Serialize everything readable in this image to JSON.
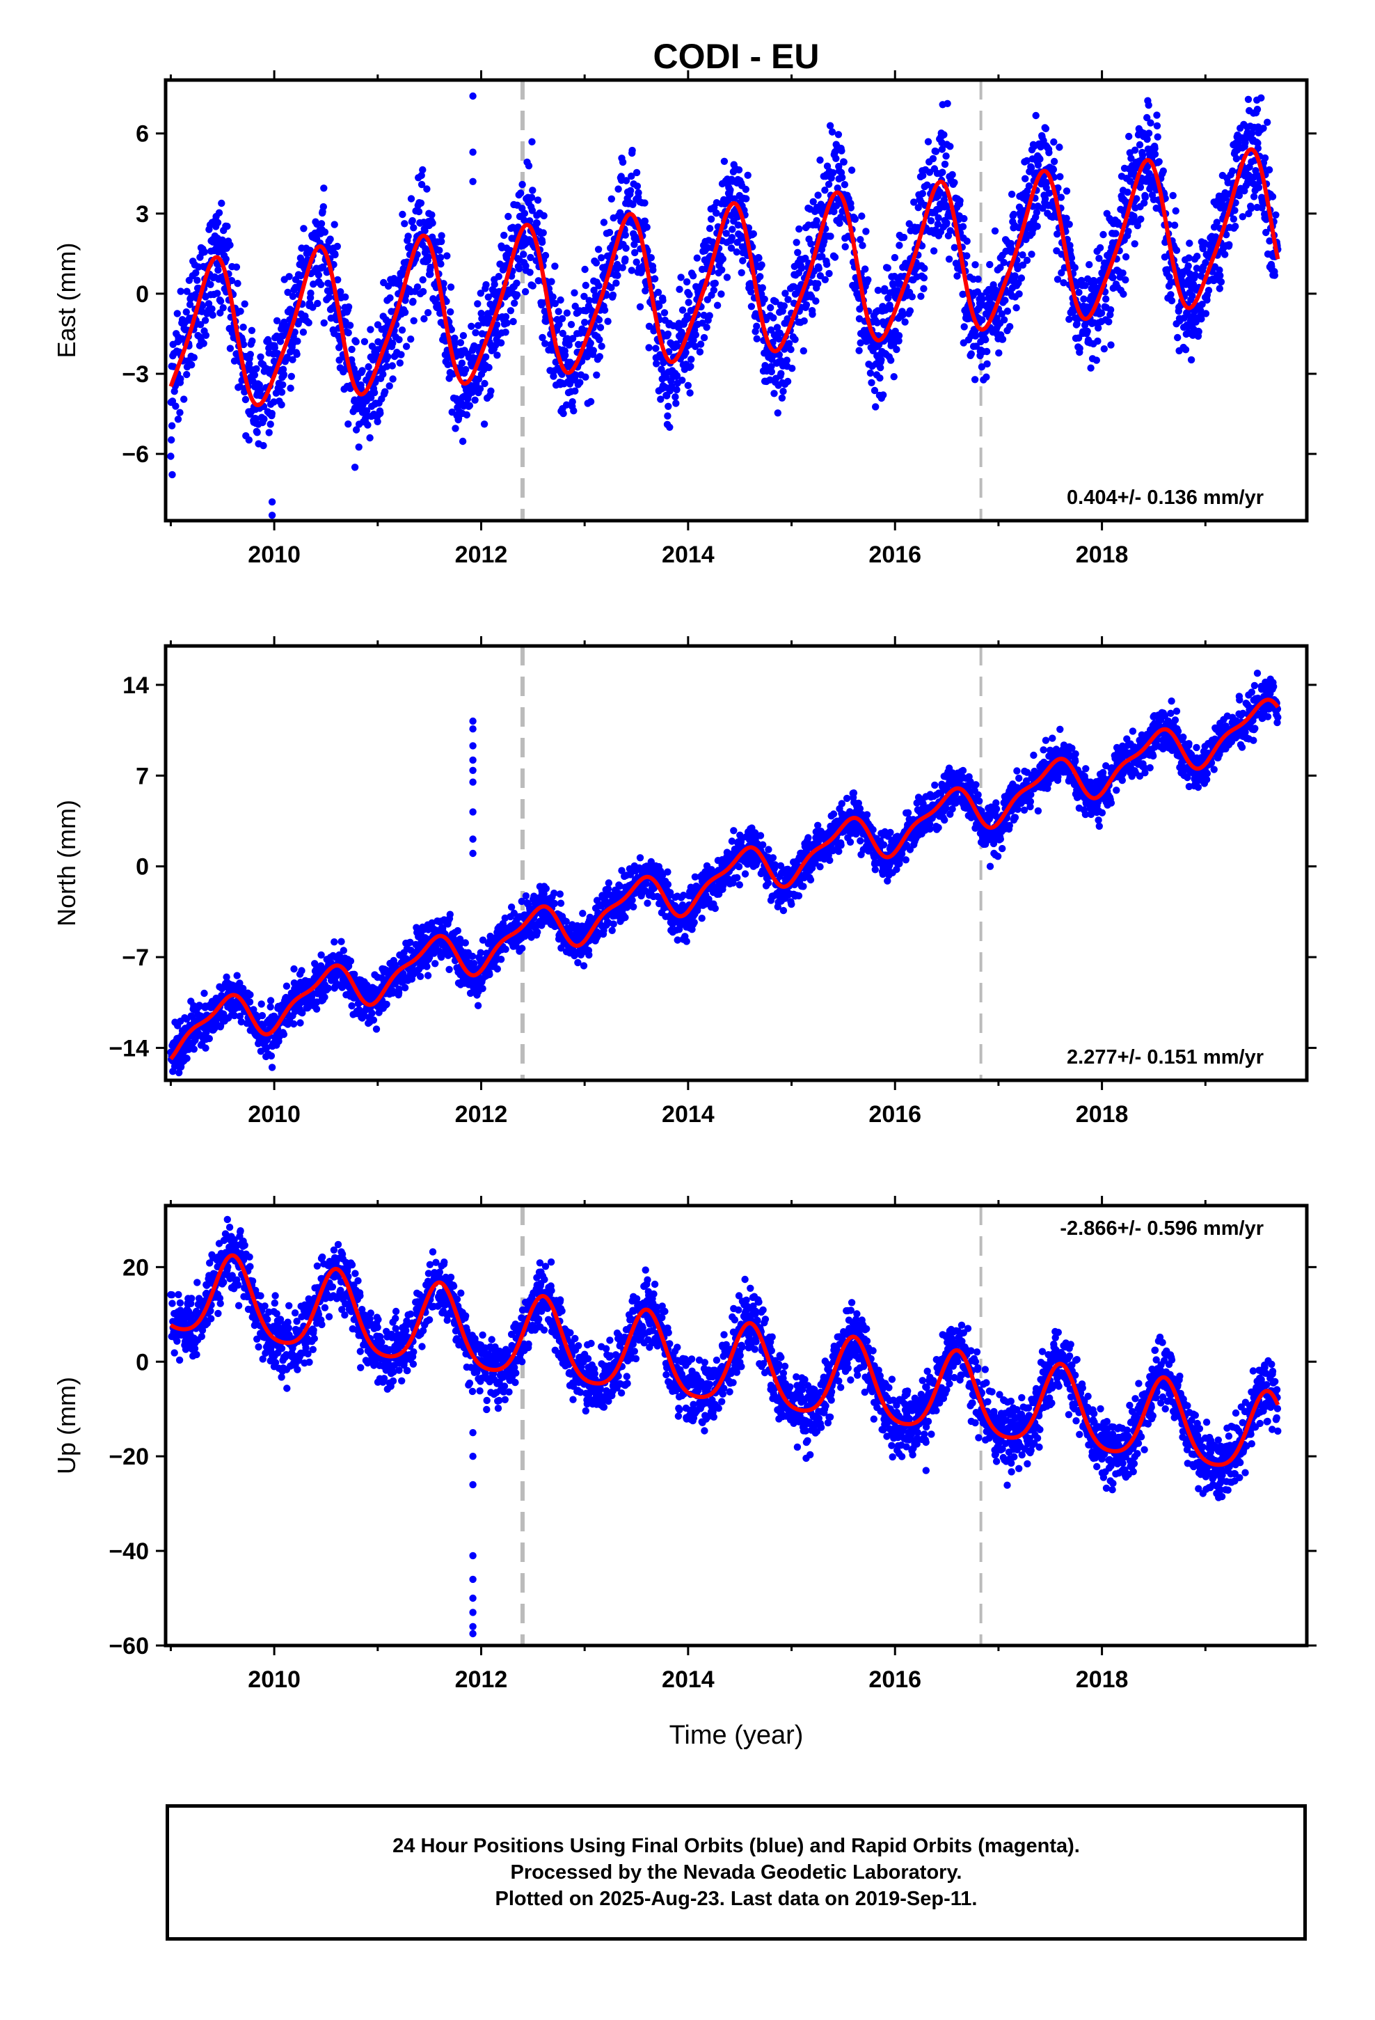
{
  "chart_data": {
    "type": "scatter",
    "title": "CODI - EU",
    "xlabel": "Time (year)",
    "x_ticks": [
      "2010",
      "2012",
      "2014",
      "2016",
      "2018"
    ],
    "xlim": [
      2008.95,
      2019.98
    ],
    "vlines": [
      {
        "x": 2012.4,
        "style": "dashed"
      },
      {
        "x": 2016.83,
        "style": "dashed"
      }
    ],
    "colors": {
      "points": "#0000ff",
      "fit": "#ff0000",
      "vline": "#bbbbbb"
    },
    "panels": [
      {
        "name": "east",
        "ylabel": "East (mm)",
        "ylim": [
          -8.5,
          8
        ],
        "yticks": [
          -6,
          -3,
          0,
          3,
          6
        ],
        "rate_label": "0.404+/- 0.136 mm/yr",
        "rate_position": "bottom-right",
        "model": {
          "t0": 2014.3,
          "offset": 0.35,
          "trend": 0.404,
          "amp": 2.7,
          "peak": 0.4,
          "amp2": 0.5,
          "phase2": 0.0,
          "noise": 1.1
        },
        "outliers": [
          [
            2011.92,
            7.4
          ],
          [
            2011.92,
            5.3
          ],
          [
            2011.92,
            4.2
          ],
          [
            2009.98,
            -7.8
          ],
          [
            2009.98,
            -8.3
          ],
          [
            2010.78,
            -6.5
          ],
          [
            2009.95,
            -5.2
          ]
        ]
      },
      {
        "name": "north",
        "ylabel": "North (mm)",
        "ylim": [
          -16.5,
          17
        ],
        "yticks": [
          -14,
          -7,
          0,
          7,
          14
        ],
        "rate_label": "2.277+/- 0.151 mm/yr",
        "rate_position": "bottom-right",
        "model": {
          "t0": 2014.3,
          "offset": -1.0,
          "trend": 2.277,
          "amp": 1.6,
          "peak": 0.5,
          "amp2": 0.6,
          "phase2": 0.3,
          "noise": 0.9
        },
        "outliers": [
          [
            2011.92,
            11.2
          ],
          [
            2011.92,
            10.6
          ],
          [
            2011.92,
            9.3
          ],
          [
            2011.92,
            8.2
          ],
          [
            2011.92,
            7.4
          ],
          [
            2011.92,
            6.5
          ],
          [
            2011.92,
            4.2
          ],
          [
            2011.92,
            2.1
          ],
          [
            2011.92,
            1.0
          ],
          [
            2009.98,
            -15.5
          ],
          [
            2016.92,
            0.0
          ]
        ]
      },
      {
        "name": "up",
        "ylabel": "Up (mm)",
        "ylim": [
          -60,
          33
        ],
        "yticks": [
          -60,
          -40,
          -20,
          0,
          20
        ],
        "rate_label": "-2.866+/- 0.596 mm/yr",
        "rate_position": "top-right",
        "model": {
          "t0": 2014.3,
          "offset": -1.0,
          "trend": -2.866,
          "amp": 8.5,
          "peak": 0.6,
          "amp2": 1.5,
          "phase2": 0.2,
          "noise": 3.5
        },
        "outliers": [
          [
            2011.92,
            -57.5
          ],
          [
            2011.92,
            -56.0
          ],
          [
            2011.92,
            -53.0
          ],
          [
            2011.92,
            -50.0
          ],
          [
            2011.92,
            -46.0
          ],
          [
            2011.92,
            -41.0
          ],
          [
            2011.92,
            -26.0
          ],
          [
            2011.92,
            -20.0
          ],
          [
            2011.92,
            -15.0
          ],
          [
            2016.3,
            -23.0
          ]
        ]
      }
    ]
  },
  "footer": {
    "line1": "24 Hour Positions Using Final Orbits (blue) and Rapid Orbits (magenta).",
    "line2": "Processed by the Nevada Geodetic Laboratory.",
    "line3": "Plotted on 2025-Aug-23. Last data on 2019-Sep-11."
  }
}
